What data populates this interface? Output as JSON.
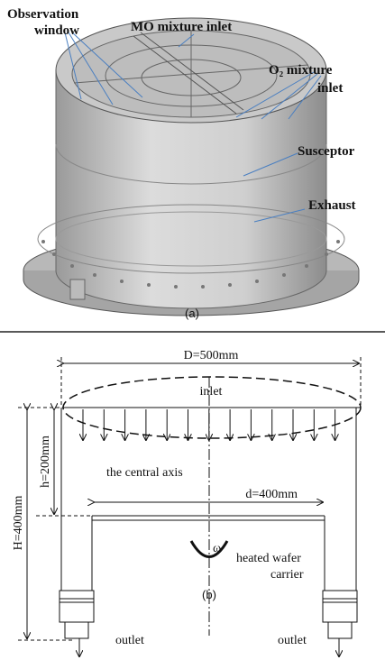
{
  "panel_a": {
    "labels": {
      "observation_window": [
        "Observation",
        "window"
      ],
      "mo_inlet": "MO mixture inlet",
      "o2_inlet": [
        "O₂ mixture",
        "inlet"
      ],
      "susceptor": "Susceptor",
      "exhaust": "Exhaust"
    },
    "caption": "(a)"
  },
  "panel_b": {
    "diameter": "D=500mm",
    "inlet": "inlet",
    "central_axis": "the central axis",
    "d": "d=400mm",
    "h": "h=200mm",
    "H": "H=400mm",
    "omega": "ω",
    "carrier": [
      "heated wafer",
      "carrier"
    ],
    "caption": "(b)",
    "outlets": [
      "outlet",
      "outlet"
    ]
  }
}
